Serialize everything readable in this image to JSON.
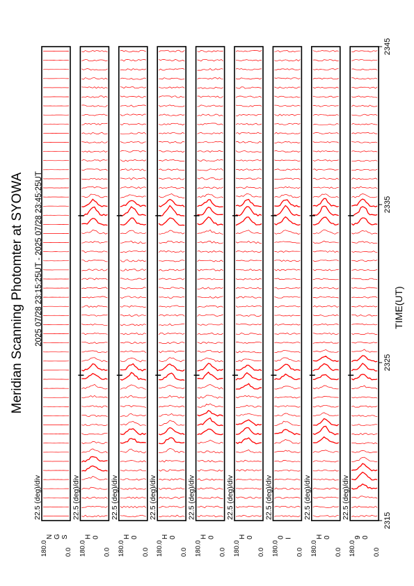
{
  "title": "Meridian Scanning Photomter at SYOWA",
  "time_range": "2025 07/28 23:15:25UT - 2025 07/28 23:45:25UT",
  "colors": {
    "trace": "#ff0000",
    "axis": "#000000",
    "background": "#ffffff"
  },
  "chart_data": {
    "type": "line",
    "title": "Meridian Scanning Photomter at SYOWA",
    "xlabel": "TIME(UT)",
    "x_ticks": [
      "2315",
      "2325",
      "2335",
      "2345"
    ],
    "x_range": [
      "2315",
      "2345"
    ],
    "panel_ylim": [
      0.0,
      180.0
    ],
    "panel_scale_label": "22.5 (deg)/div",
    "panels": [
      {
        "label": "N\nG\nS",
        "ymin": "0.0",
        "ymax": "180.0",
        "activity": 0.05,
        "bursts": []
      },
      {
        "label": "H\n0",
        "ymin": "0.0",
        "ymax": "180.0",
        "activity": 0.5,
        "bursts": [
          {
            "t": 2334.3,
            "amp": 1.0
          },
          {
            "t": 2324.2,
            "amp": 0.8
          },
          {
            "t": 2318.5,
            "amp": 0.6
          }
        ]
      },
      {
        "label": "H\n0",
        "ymin": "0.0",
        "ymax": "180.0",
        "activity": 0.55,
        "bursts": [
          {
            "t": 2334.3,
            "amp": 1.0
          },
          {
            "t": 2324.2,
            "amp": 0.8
          },
          {
            "t": 2320.3,
            "amp": 0.7
          }
        ]
      },
      {
        "label": "H\n0",
        "ymin": "0.0",
        "ymax": "180.0",
        "activity": 0.55,
        "bursts": [
          {
            "t": 2334.3,
            "amp": 1.1
          },
          {
            "t": 2324.2,
            "amp": 0.8
          },
          {
            "t": 2320.3,
            "amp": 0.8
          }
        ]
      },
      {
        "label": "H\n0",
        "ymin": "0.0",
        "ymax": "180.0",
        "activity": 0.55,
        "bursts": [
          {
            "t": 2334.3,
            "amp": 1.0
          },
          {
            "t": 2324.2,
            "amp": 0.8
          },
          {
            "t": 2321.0,
            "amp": 0.8
          }
        ]
      },
      {
        "label": "H\n0",
        "ymin": "0.0",
        "ymax": "180.0",
        "activity": 0.5,
        "bursts": [
          {
            "t": 2334.3,
            "amp": 1.1
          },
          {
            "t": 2324.0,
            "amp": 0.7
          },
          {
            "t": 2320.5,
            "amp": 0.8
          }
        ]
      },
      {
        "label": "0\nI",
        "ymin": "0.0",
        "ymax": "180.0",
        "activity": 0.45,
        "bursts": [
          {
            "t": 2334.3,
            "amp": 1.1
          },
          {
            "t": 2324.4,
            "amp": 0.7
          },
          {
            "t": 2320.5,
            "amp": 0.6
          }
        ]
      },
      {
        "label": "H\n0",
        "ymin": "0.0",
        "ymax": "180.0",
        "activity": 0.45,
        "bursts": [
          {
            "t": 2334.3,
            "amp": 1.2
          },
          {
            "t": 2324.5,
            "amp": 0.8
          },
          {
            "t": 2320.5,
            "amp": 0.9
          }
        ]
      },
      {
        "label": "9\n0",
        "ymin": "0.0",
        "ymax": "180.0",
        "activity": 0.45,
        "bursts": [
          {
            "t": 2334.3,
            "amp": 1.1
          },
          {
            "t": 2324.5,
            "amp": 0.8
          },
          {
            "t": 2317.8,
            "amp": 0.9
          }
        ]
      }
    ]
  }
}
